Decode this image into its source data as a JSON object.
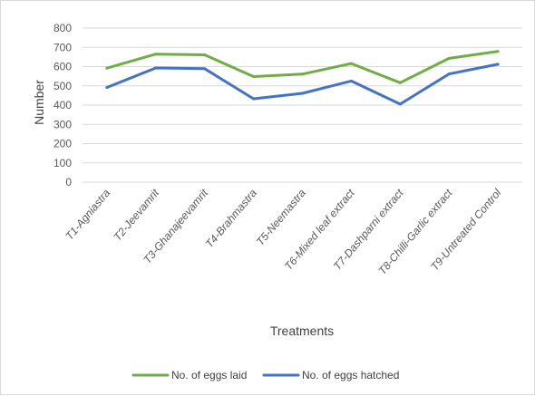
{
  "chart_data": {
    "type": "line",
    "title": "",
    "xlabel": "Treatments",
    "ylabel": "Number",
    "ylim": [
      0,
      800
    ],
    "yticks": [
      0,
      100,
      200,
      300,
      400,
      500,
      600,
      700,
      800
    ],
    "grid": true,
    "legend_position": "bottom",
    "categories": [
      "T1-Agniastra",
      "T2-Jeevamrit",
      "T3-Ghanajeevamrit",
      "T4-Brahmastra",
      "T5-Neemastra",
      "T6-Mixed leaf extract",
      "T7-Dashparni extract",
      "T8-Chilli-Garlic extract",
      "T9-Untreated Control"
    ],
    "series": [
      {
        "name": "No. of eggs laid",
        "color": "#70ad47",
        "values": [
          592,
          665,
          661,
          548,
          561,
          616,
          516,
          643,
          679
        ]
      },
      {
        "name": "No. of eggs hatched",
        "color": "#4472c4",
        "values": [
          492,
          593,
          589,
          433,
          461,
          525,
          405,
          562,
          612
        ]
      }
    ]
  }
}
